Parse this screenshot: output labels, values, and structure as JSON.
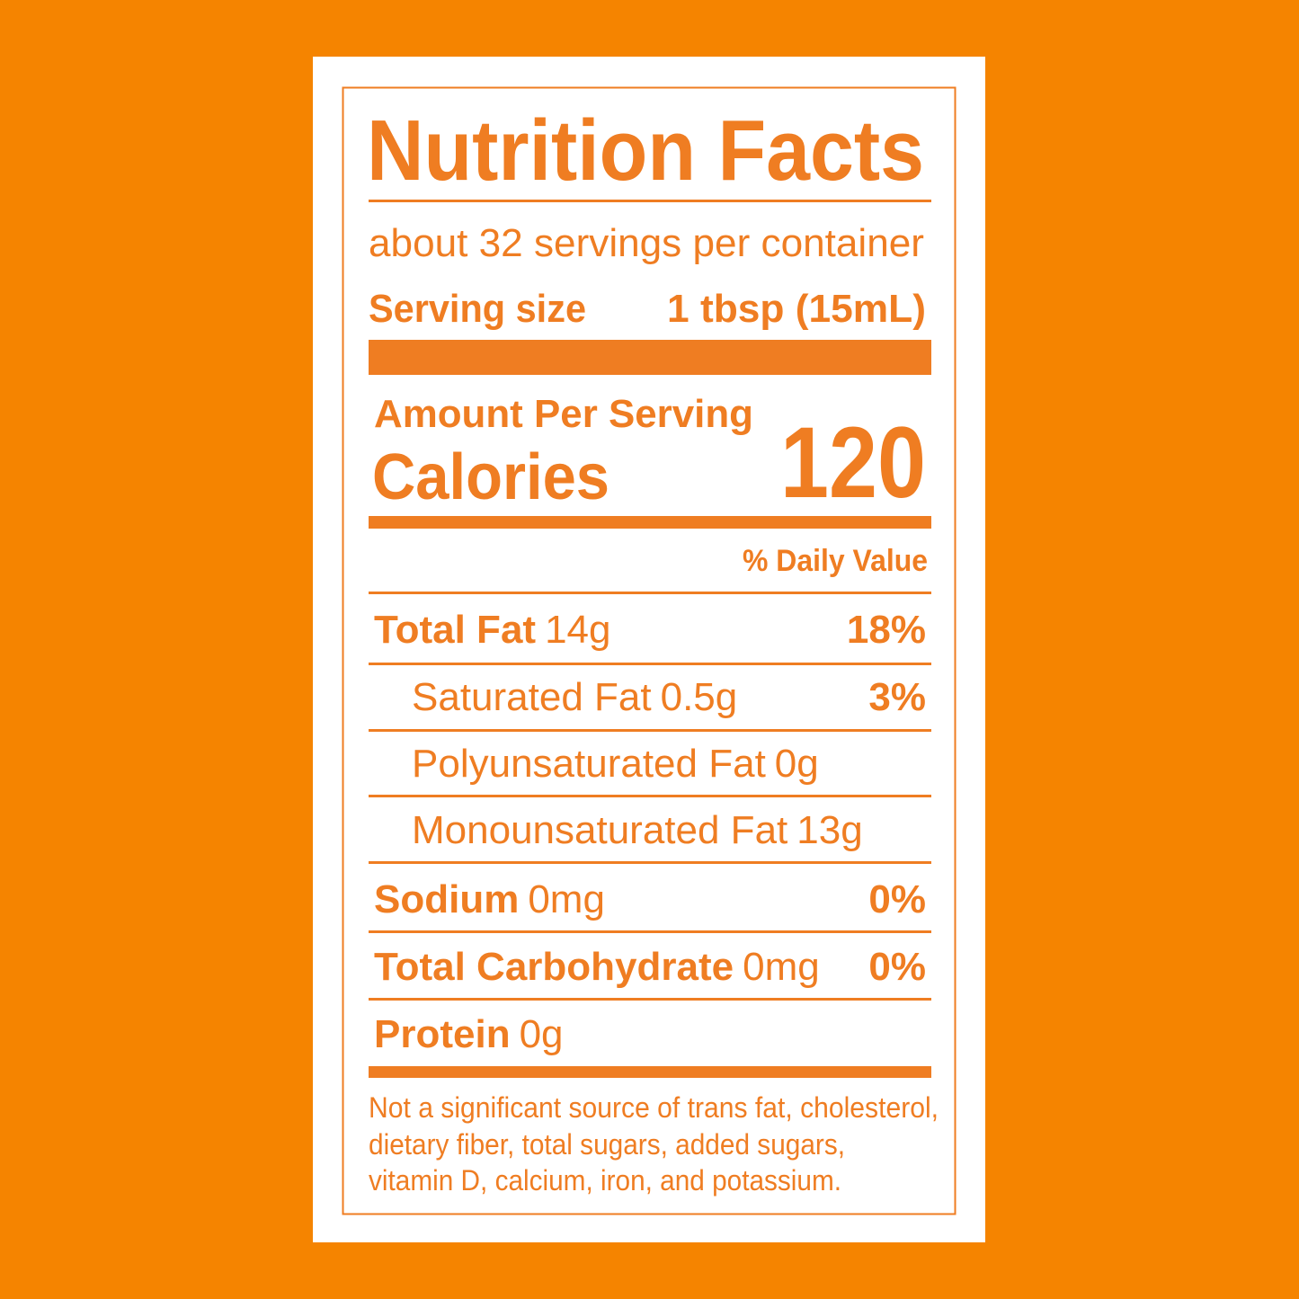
{
  "title": "Nutrition Facts",
  "servings": "about 32 servings per container",
  "serving_size": {
    "label": "Serving size",
    "value": "1 tbsp (15mL)"
  },
  "amount_per_serving": "Amount Per Serving",
  "calories": {
    "label": "Calories",
    "value": 120
  },
  "daily_value_header": "% Daily Value",
  "nutrients": [
    {
      "name": "Total Fat",
      "amount": "14g",
      "dv": "18%",
      "bold": true
    },
    {
      "name": "Saturated Fat",
      "amount": "0.5g",
      "dv": "3%",
      "bold": false
    },
    {
      "name": "Polyunsaturated Fat",
      "amount": "0g",
      "bold": false
    },
    {
      "name": "Monounsaturated Fat",
      "amount": "13g",
      "bold": false
    },
    {
      "name": "Sodium",
      "amount": "0mg",
      "dv": "0%",
      "bold": true
    },
    {
      "name": "Total Carbohydrate",
      "amount": "0mg",
      "dv": "0%",
      "bold": true
    },
    {
      "name": "Protein",
      "amount": "0g",
      "bold": true
    }
  ],
  "footnote": [
    "Not a significant source of trans fat, cholesterol,",
    "dietary fiber, total sugars, added sugars,",
    "vitamin D, calcium, iron, and potassium."
  ]
}
